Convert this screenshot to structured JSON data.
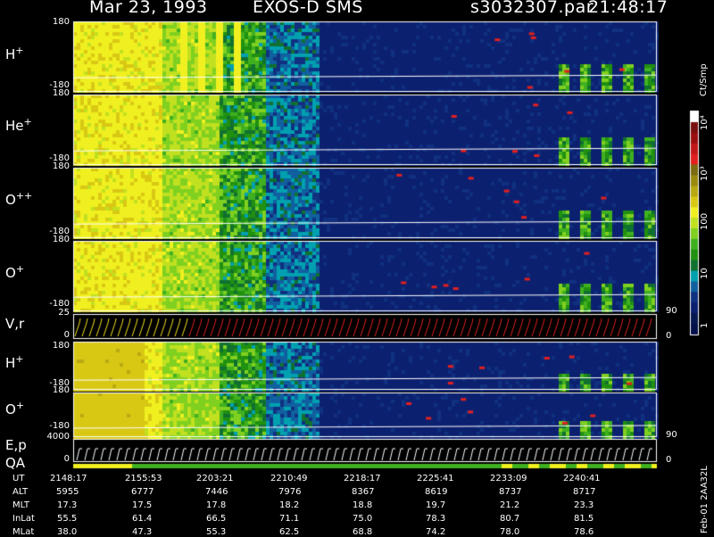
{
  "header": {
    "date": "Mar 23, 1993",
    "instrument": "EXOS-D SMS",
    "file": "s3032307.par",
    "time": "21:48:17"
  },
  "panels": [
    {
      "id": "h1",
      "label": "H",
      "sup": "+",
      "top": "180",
      "bottom": "-180"
    },
    {
      "id": "he",
      "label": "He",
      "sup": "+",
      "top": "180",
      "bottom": "-180"
    },
    {
      "id": "o2",
      "label": "O",
      "sup": "++",
      "top": "180",
      "bottom": "-180"
    },
    {
      "id": "o1",
      "label": "O",
      "sup": "+",
      "top": "180",
      "bottom": "-180"
    },
    {
      "id": "vr",
      "label": "V,r",
      "sup": "",
      "top": "25",
      "bottom": "0",
      "right_top": "90",
      "right_bottom": "0"
    },
    {
      "id": "h2",
      "label": "H",
      "sup": "+",
      "top": "180",
      "bottom": "-180"
    },
    {
      "id": "o3",
      "label": "O",
      "sup": "+",
      "top": "180",
      "bottom": "-180"
    },
    {
      "id": "ep",
      "label": "E,p",
      "sup": "",
      "top": "4000",
      "bottom": "0",
      "right_top": "90",
      "right_bottom": "0"
    }
  ],
  "qa_label": "QA",
  "colorbar": {
    "unit": "Ct/Smp",
    "ticks": [
      "10⁴",
      "10³",
      "100",
      "10",
      "1"
    ],
    "colors": [
      "#ffffff",
      "#7a1010",
      "#9a1010",
      "#c01818",
      "#e02020",
      "#7a6a10",
      "#9a8a10",
      "#b8a812",
      "#d8c814",
      "#f0f020",
      "#c0e020",
      "#80d020",
      "#40b020",
      "#209010",
      "#107030",
      "#00a0b0",
      "#1060a0",
      "#103080",
      "#0c2070",
      "#061850",
      "#04104a"
    ]
  },
  "table": {
    "row_labels": [
      "UT",
      "ALT",
      "MLT",
      "InLat",
      "MLat"
    ],
    "columns": [
      {
        "UT": "2148:17",
        "ALT": "5955",
        "MLT": "17.3",
        "InLat": "55.5",
        "MLat": "38.0"
      },
      {
        "UT": "2155:53",
        "ALT": "6777",
        "MLT": "17.5",
        "InLat": "61.4",
        "MLat": "47.3"
      },
      {
        "UT": "2203:21",
        "ALT": "7446",
        "MLT": "17.8",
        "InLat": "66.5",
        "MLat": "55.3"
      },
      {
        "UT": "2210:49",
        "ALT": "7976",
        "MLT": "18.2",
        "InLat": "71.1",
        "MLat": "62.5"
      },
      {
        "UT": "2218:17",
        "ALT": "8367",
        "MLT": "18.8",
        "InLat": "75.0",
        "MLat": "68.8"
      },
      {
        "UT": "2225:41",
        "ALT": "8619",
        "MLT": "19.7",
        "InLat": "78.3",
        "MLat": "74.2"
      },
      {
        "UT": "2233:09",
        "ALT": "8737",
        "MLT": "21.2",
        "InLat": "80.7",
        "MLat": "78.0"
      },
      {
        "UT": "2240:41",
        "ALT": "8717",
        "MLT": "23.3",
        "InLat": "81.5",
        "MLat": "78.6"
      }
    ]
  },
  "footer_code": "Feb-01 2AA32L",
  "chart_data": {
    "type": "heatmap",
    "title": "Mar 23, 1993   EXOS-D SMS",
    "x": [
      "2148:17",
      "2155:53",
      "2203:21",
      "2210:49",
      "2218:17",
      "2225:41",
      "2233:09",
      "2240:41"
    ],
    "series": [
      {
        "name": "H+",
        "ylim": [
          -180,
          180
        ]
      },
      {
        "name": "He+",
        "ylim": [
          -180,
          180
        ]
      },
      {
        "name": "O++",
        "ylim": [
          -180,
          180
        ]
      },
      {
        "name": "O+",
        "ylim": [
          -180,
          180
        ]
      },
      {
        "name": "V,r",
        "ylim": [
          0,
          25
        ]
      },
      {
        "name": "H+",
        "ylim": [
          -180,
          180
        ]
      },
      {
        "name": "O+",
        "ylim": [
          -180,
          180
        ]
      },
      {
        "name": "E,p",
        "ylim": [
          0,
          4000
        ]
      }
    ],
    "colorscale": {
      "unit": "Ct/Smp",
      "range": [
        1,
        10000
      ],
      "log": true
    }
  }
}
